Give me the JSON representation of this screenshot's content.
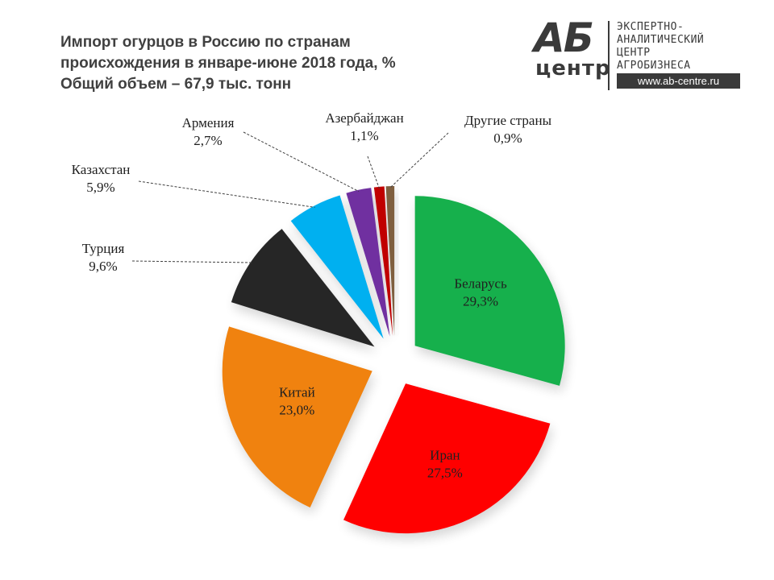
{
  "title": {
    "line1": "Импорт огурцов в Россию по странам",
    "line2": "происхождения в январе-июне 2018 года, %",
    "line3": "Общий объем – 67,9 тыс. тонн"
  },
  "logo": {
    "mark": "АБ",
    "center": "центр",
    "line1": "ЭКСПЕРТНО-",
    "line2": "АНАЛИТИЧЕСКИЙ",
    "line3": "ЦЕНТР",
    "line4": "АГРОБИЗНЕСА",
    "url": "www.ab-centre.ru"
  },
  "chart_data": {
    "type": "pie",
    "slices": [
      {
        "label": "Беларусь",
        "value": 29.3,
        "value_label": "29,3%",
        "color": "#16b04c"
      },
      {
        "label": "Иран",
        "value": 27.5,
        "value_label": "27,5%",
        "color": "#ff0000"
      },
      {
        "label": "Китай",
        "value": 23.0,
        "value_label": "23,0%",
        "color": "#f0820f"
      },
      {
        "label": "Турция",
        "value": 9.6,
        "value_label": "9,6%",
        "color": "#262626"
      },
      {
        "label": "Казахстан",
        "value": 5.9,
        "value_label": "5,9%",
        "color": "#00b0f0"
      },
      {
        "label": "Армения",
        "value": 2.7,
        "value_label": "2,7%",
        "color": "#7030a0"
      },
      {
        "label": "Азербайджан",
        "value": 1.1,
        "value_label": "1,1%",
        "color": "#c00000"
      },
      {
        "label": "Другие страны",
        "value": 0.9,
        "value_label": "0,9%",
        "color": "#7f5f3f"
      }
    ],
    "exploded": true,
    "shadow": true
  }
}
